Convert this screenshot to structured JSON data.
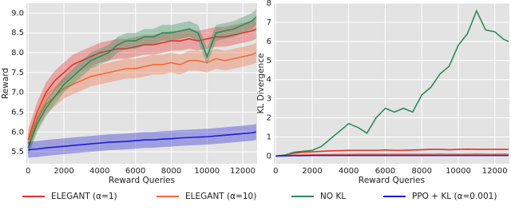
{
  "chart_data": [
    {
      "type": "line",
      "xlabel": "Reward Queries",
      "ylabel": "Reward",
      "grid": true,
      "legend": "bottom",
      "x": [
        0,
        500,
        1000,
        1500,
        2000,
        2500,
        3000,
        3500,
        4000,
        4500,
        5000,
        5500,
        6000,
        6500,
        7000,
        7500,
        8000,
        8500,
        9000,
        9500,
        10000,
        10500,
        11000,
        11500,
        12000,
        12500,
        12750
      ],
      "xlim": [
        -100,
        12800
      ],
      "xticks": [
        0,
        2000,
        4000,
        6000,
        8000,
        10000,
        12000
      ],
      "ylim": [
        5.2,
        9.25
      ],
      "yticks": [
        5.5,
        {
          "value": 6,
          "label": "6.0"
        },
        6.5,
        {
          "value": 7,
          "label": "7.0"
        },
        7.5,
        {
          "value": 8,
          "label": "8.0"
        },
        8.5,
        {
          "value": 9,
          "label": "9.0"
        }
      ],
      "series": [
        {
          "name": "ELEGANT (α=1)",
          "color": "#e8302a",
          "band": 0.25,
          "values": [
            5.8,
            6.5,
            7.0,
            7.3,
            7.5,
            7.7,
            7.8,
            7.9,
            8.0,
            8.05,
            8.1,
            8.1,
            8.15,
            8.2,
            8.2,
            8.25,
            8.3,
            8.3,
            8.35,
            8.3,
            8.35,
            8.4,
            8.4,
            8.45,
            8.5,
            8.55,
            8.6
          ]
        },
        {
          "name": "ELEGANT (α=10)",
          "color": "#f26b3a",
          "band": 0.25,
          "values": [
            5.7,
            6.3,
            6.7,
            6.9,
            7.1,
            7.2,
            7.3,
            7.4,
            7.45,
            7.5,
            7.55,
            7.6,
            7.6,
            7.65,
            7.7,
            7.7,
            7.75,
            7.7,
            7.8,
            7.8,
            7.75,
            7.85,
            7.8,
            7.85,
            7.9,
            7.95,
            8.0
          ]
        },
        {
          "name": "NO KL",
          "color": "#2e8b57",
          "band": 0.2,
          "values": [
            5.6,
            6.2,
            6.6,
            6.9,
            7.2,
            7.4,
            7.6,
            7.8,
            7.9,
            8.0,
            8.2,
            8.3,
            8.3,
            8.4,
            8.4,
            8.5,
            8.5,
            8.55,
            8.6,
            8.5,
            7.9,
            8.5,
            8.55,
            8.6,
            8.7,
            8.8,
            8.9
          ]
        },
        {
          "name": "PPO + KL (α=0.001)",
          "color": "#1c1cd6",
          "band": 0.2,
          "values": [
            5.55,
            5.57,
            5.6,
            5.62,
            5.64,
            5.66,
            5.68,
            5.7,
            5.72,
            5.74,
            5.75,
            5.76,
            5.78,
            5.8,
            5.8,
            5.82,
            5.83,
            5.85,
            5.86,
            5.87,
            5.88,
            5.9,
            5.92,
            5.94,
            5.96,
            5.98,
            6.0
          ]
        }
      ]
    },
    {
      "type": "line",
      "xlabel": "Reward Queries",
      "ylabel": "KL Divergence",
      "grid": true,
      "x": [
        0,
        500,
        1000,
        1500,
        2000,
        2500,
        3000,
        3500,
        4000,
        4500,
        5000,
        5500,
        6000,
        6500,
        7000,
        7500,
        8000,
        8500,
        9000,
        9500,
        10000,
        10500,
        11000,
        11500,
        12000,
        12500,
        12750
      ],
      "xlim": [
        -100,
        12800
      ],
      "xticks": [
        0,
        2000,
        4000,
        6000,
        8000,
        10000,
        12000
      ],
      "ylim": [
        -0.4,
        8
      ],
      "yticks": [
        0,
        1,
        2,
        3,
        4,
        5,
        6,
        7,
        8
      ],
      "series": [
        {
          "color": "#e8302a",
          "values": [
            0,
            0.05,
            0.15,
            0.2,
            0.22,
            0.25,
            0.27,
            0.28,
            0.3,
            0.3,
            0.3,
            0.3,
            0.32,
            0.3,
            0.3,
            0.32,
            0.33,
            0.35,
            0.35,
            0.33,
            0.35,
            0.36,
            0.35,
            0.35,
            0.35,
            0.35,
            0.35
          ]
        },
        {
          "color": "#f26b3a",
          "values": [
            0,
            0.02,
            0.05,
            0.06,
            0.07,
            0.08,
            0.08,
            0.09,
            0.09,
            0.1,
            0.1,
            0.1,
            0.1,
            0.1,
            0.1,
            0.1,
            0.1,
            0.1,
            0.11,
            0.1,
            0.1,
            0.1,
            0.11,
            0.1,
            0.1,
            0.1,
            0.1
          ]
        },
        {
          "color": "#2e8b57",
          "values": [
            0,
            0.05,
            0.2,
            0.25,
            0.3,
            0.5,
            0.9,
            1.3,
            1.7,
            1.5,
            1.2,
            2.0,
            2.5,
            2.3,
            2.5,
            2.3,
            3.2,
            3.6,
            4.3,
            4.7,
            5.8,
            6.4,
            7.6,
            6.6,
            6.5,
            6.1,
            6.0
          ]
        },
        {
          "color": "#1c1cd6",
          "values": [
            0,
            0.01,
            0.02,
            0.02,
            0.03,
            0.03,
            0.03,
            0.03,
            0.03,
            0.03,
            0.03,
            0.03,
            0.03,
            0.03,
            0.03,
            0.03,
            0.03,
            0.03,
            0.03,
            0.03,
            0.03,
            0.03,
            0.03,
            0.03,
            0.03,
            0.03,
            0.03
          ]
        }
      ]
    }
  ]
}
